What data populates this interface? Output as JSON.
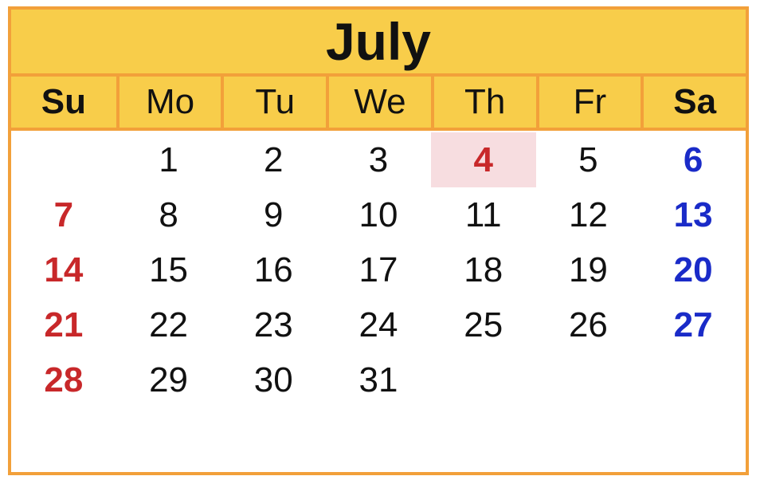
{
  "calendar": {
    "month": "July",
    "weekdays": [
      "Su",
      "Mo",
      "Tu",
      "We",
      "Th",
      "Fr",
      "Sa"
    ],
    "weeks": [
      [
        "",
        "1",
        "2",
        "3",
        "4",
        "5",
        "6"
      ],
      [
        "7",
        "8",
        "9",
        "10",
        "11",
        "12",
        "13"
      ],
      [
        "14",
        "15",
        "16",
        "17",
        "18",
        "19",
        "20"
      ],
      [
        "21",
        "22",
        "23",
        "24",
        "25",
        "26",
        "27"
      ],
      [
        "28",
        "29",
        "30",
        "31",
        "",
        "",
        ""
      ]
    ],
    "highlighted_day": "4",
    "colors": {
      "header_bg": "#f8cd4a",
      "border": "#f2a03a",
      "sunday": "#c8282a",
      "saturday": "#1a2bc8",
      "holiday_bg": "#f7dde0"
    }
  }
}
